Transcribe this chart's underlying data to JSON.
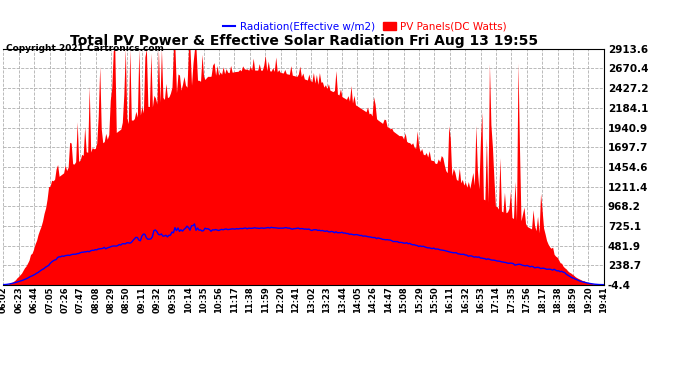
{
  "title": "Total PV Power & Effective Solar Radiation Fri Aug 13 19:55",
  "copyright": "Copyright 2021 Cartronics.com",
  "legend_radiation": "Radiation(Effective w/m2)",
  "legend_pv": "PV Panels(DC Watts)",
  "radiation_color": "blue",
  "pv_color": "red",
  "background_color": "#ffffff",
  "grid_color": "#b0b0b0",
  "ymin": -4.4,
  "ymax": 2913.6,
  "yticks": [
    -4.4,
    238.7,
    481.9,
    725.1,
    968.2,
    1211.4,
    1454.6,
    1697.7,
    1940.9,
    2184.1,
    2427.2,
    2670.4,
    2913.6
  ],
  "xtick_labels": [
    "06:02",
    "06:23",
    "06:44",
    "07:05",
    "07:26",
    "07:47",
    "08:08",
    "08:29",
    "08:50",
    "09:11",
    "09:32",
    "09:53",
    "10:14",
    "10:35",
    "10:56",
    "11:17",
    "11:38",
    "11:59",
    "12:20",
    "12:41",
    "13:02",
    "13:23",
    "13:44",
    "14:05",
    "14:26",
    "14:47",
    "15:08",
    "15:29",
    "15:50",
    "16:11",
    "16:32",
    "16:53",
    "17:14",
    "17:35",
    "17:56",
    "18:17",
    "18:38",
    "18:59",
    "19:20",
    "19:41"
  ],
  "num_points": 400,
  "title_fontsize": 10,
  "copyright_fontsize": 6.5,
  "legend_fontsize": 7.5,
  "ytick_fontsize": 7.5,
  "xtick_fontsize": 6
}
